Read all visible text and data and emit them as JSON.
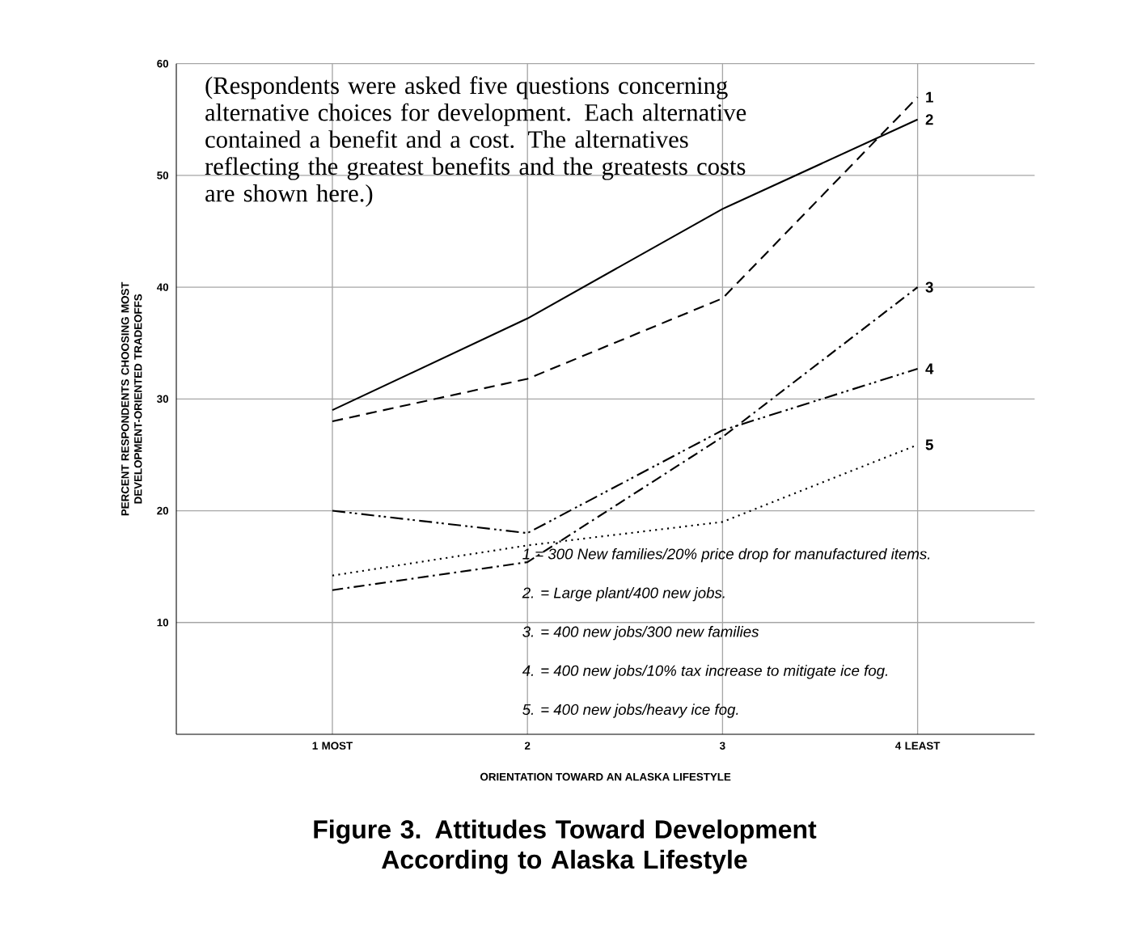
{
  "chart_data": {
    "type": "line",
    "title": "Figure 3. Attitudes Toward Development According to Alaska Lifestyle",
    "xlabel": "ORIENTATION TOWARD AN ALASKA LIFESTYLE",
    "ylabel": "PERCENT RESPONDENTS CHOOSING MOST DEVELOPMENT-ORIENTED TRADEOFFS",
    "categories": [
      "1 MOST",
      "2",
      "3",
      "4 LEAST"
    ],
    "series": [
      {
        "name": "1",
        "color": "#000000",
        "line_style": "dashed",
        "values": [
          28,
          31.8,
          39,
          57
        ]
      },
      {
        "name": "2",
        "color": "#000000",
        "line_style": "solid",
        "values": [
          29,
          37.2,
          47,
          55
        ]
      },
      {
        "name": "3",
        "color": "#000000",
        "line_style": "dashdotted",
        "values": [
          12.9,
          15.4,
          26.6,
          40
        ]
      },
      {
        "name": "4",
        "color": "#000000",
        "line_style": "dashdotdotted",
        "values": [
          20,
          18,
          27.2,
          32.7
        ]
      },
      {
        "name": "5",
        "color": "#000000",
        "line_style": "dotted",
        "values": [
          14.2,
          16.9,
          19,
          25.9
        ]
      }
    ],
    "ylim": [
      0,
      60
    ],
    "yticks": [
      10,
      20,
      30,
      40,
      50,
      60
    ],
    "grid": true,
    "annotations": [
      "(Respondents were asked five questions concerning alternative choices for development. Each alternative contained a benefit and a cost. The alternatives reflecting the greatest benefits and the greatests costs are shown here.)",
      "1 = 300 New families/20% price drop for manufactured items.",
      "2. = Large plant/400 new jobs.",
      "3. = 400 new jobs/300 new families",
      "4. = 400 new jobs/10% tax increase to mitigate ice fog.",
      "5. = 400 new jobs/heavy ice fog."
    ]
  }
}
